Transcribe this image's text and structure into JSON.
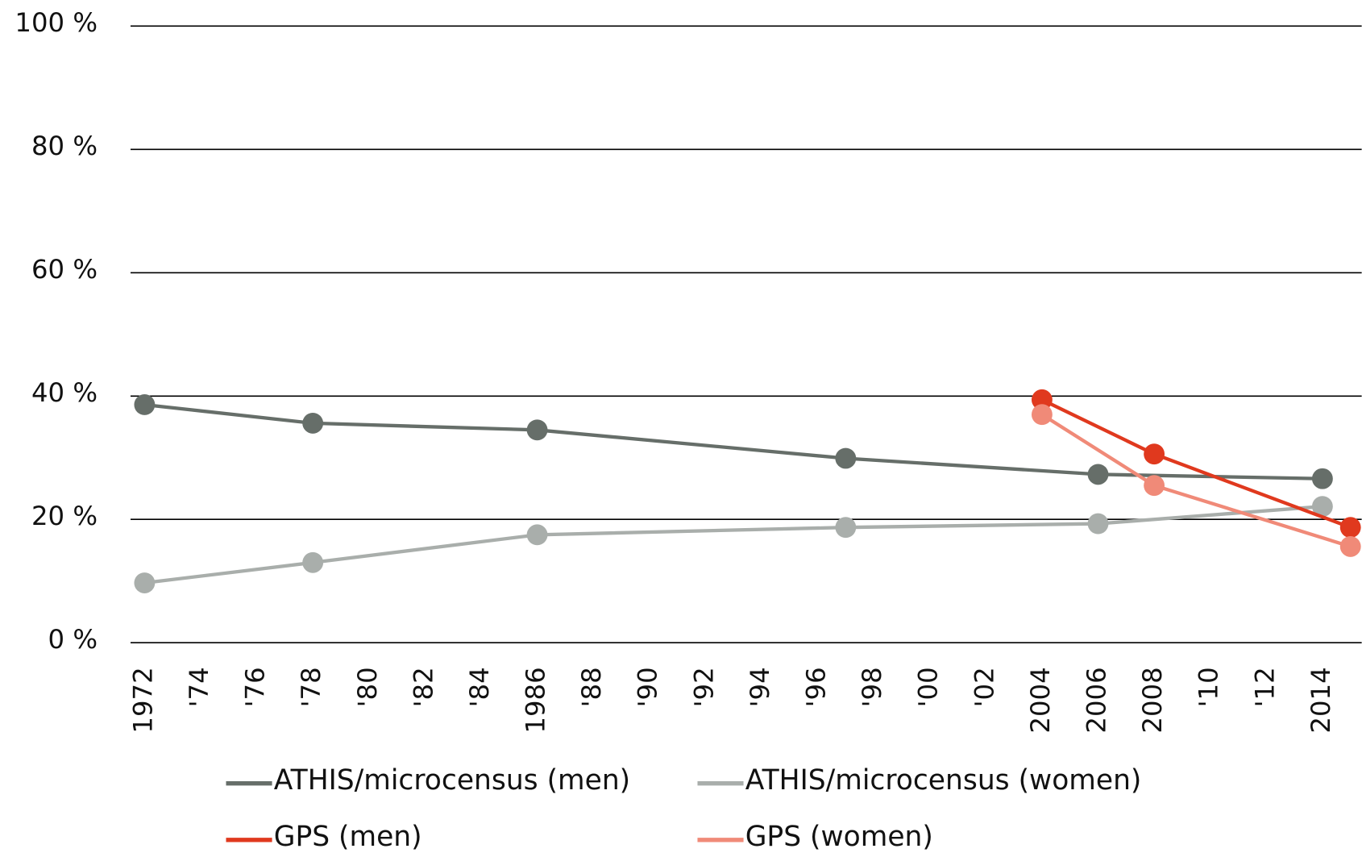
{
  "chart_data": {
    "type": "line",
    "xlim": [
      1971.5,
      2015.4
    ],
    "xticks": [
      1972,
      {
        "value": 1974,
        "label": "'74"
      },
      {
        "value": 1976,
        "label": "'76"
      },
      {
        "value": 1978,
        "label": "'78"
      },
      {
        "value": 1980,
        "label": "'80"
      },
      {
        "value": 1982,
        "label": "'82"
      },
      {
        "value": 1984,
        "label": "'84"
      },
      1986,
      {
        "value": 1988,
        "label": "'88"
      },
      {
        "value": 1990,
        "label": "'90"
      },
      {
        "value": 1992,
        "label": "'92"
      },
      {
        "value": 1994,
        "label": "'94"
      },
      {
        "value": 1996,
        "label": "'96"
      },
      {
        "value": 1998,
        "label": "'98"
      },
      {
        "value": 2000,
        "label": "'00"
      },
      {
        "value": 2002,
        "label": "'02"
      },
      2004,
      2006,
      2008,
      {
        "value": 2010,
        "label": "'10"
      },
      {
        "value": 2012,
        "label": "'12"
      },
      2014
    ],
    "ylim": [
      0,
      100
    ],
    "yticks": [
      {
        "value": 0,
        "label": "0 %"
      },
      {
        "value": 20,
        "label": "20 %"
      },
      {
        "value": 40,
        "label": "40 %"
      },
      {
        "value": 60,
        "label": "60 %"
      },
      {
        "value": 80,
        "label": "80 %"
      },
      {
        "value": 100,
        "label": "100 %"
      }
    ],
    "grid": true,
    "series": [
      {
        "name": "ATHIS/microcensus (men)",
        "color": "#666e69",
        "x": [
          1972,
          1978,
          1986,
          1997,
          2006,
          2014
        ],
        "values": [
          38.6,
          35.6,
          34.5,
          29.9,
          27.3,
          26.6
        ]
      },
      {
        "name": "ATHIS/microcensus (women)",
        "color": "#a9aeab",
        "x": [
          1972,
          1978,
          1986,
          1997,
          2006,
          2014
        ],
        "values": [
          9.7,
          13.0,
          17.5,
          18.7,
          19.3,
          22.1
        ]
      },
      {
        "name": "GPS (men)",
        "color": "#e0391e",
        "x": [
          2004,
          2008,
          2015
        ],
        "values": [
          39.4,
          30.6,
          18.7
        ]
      },
      {
        "name": "GPS (women)",
        "color": "#f08a78",
        "x": [
          2004,
          2008,
          2015
        ],
        "values": [
          37.0,
          25.5,
          15.6
        ]
      }
    ]
  }
}
